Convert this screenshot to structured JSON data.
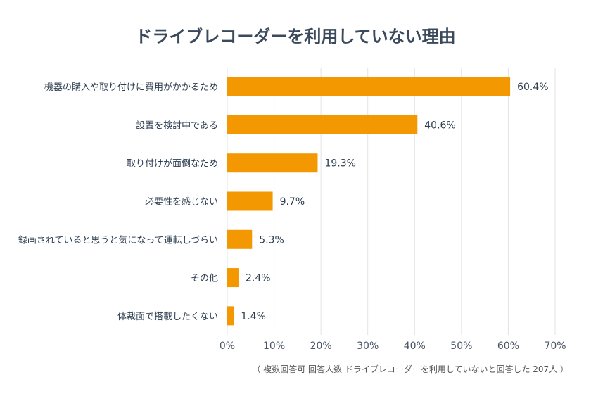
{
  "chart_data": {
    "type": "bar",
    "orientation": "horizontal",
    "title": "ドライブレコーダーを利用していない理由",
    "categories": [
      "機器の購入や取り付けに費用がかかるため",
      "設置を検討中である",
      "取り付けが面倒なため",
      "必要性を感じない",
      "録画されていると思うと気になって運転しづらい",
      "その他",
      "体裁面で搭載したくない"
    ],
    "values": [
      60.4,
      40.6,
      19.3,
      9.7,
      5.3,
      2.4,
      1.4
    ],
    "value_labels": [
      "60.4%",
      "40.6%",
      "19.3%",
      "9.7%",
      "5.3%",
      "2.4%",
      "1.4%"
    ],
    "xlim": [
      0,
      70
    ],
    "xticks": [
      "0%",
      "10%",
      "20%",
      "30%",
      "40%",
      "50%",
      "60%",
      "70%"
    ],
    "grid": true,
    "bar_color": "#f39800",
    "note": "（ 複数回答可  回答人数  ドライブレコーダーを利用していないと回答した  207人 ）"
  }
}
